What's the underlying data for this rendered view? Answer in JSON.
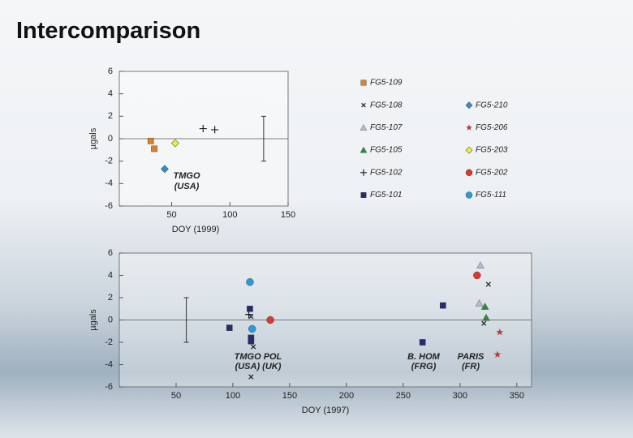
{
  "title": "Intercomparison",
  "chart_data": [
    {
      "type": "scatter",
      "x_label": "DOY (1999)",
      "y_label": "µgals",
      "xlim": [
        5,
        150
      ],
      "ylim": [
        -6,
        6
      ],
      "xticks": [
        50,
        100,
        150
      ],
      "yticks": [
        -6,
        -4,
        -2,
        0,
        2,
        4,
        6
      ],
      "zero_line": true,
      "legend": "right",
      "annotations": [
        "TMGO",
        "(USA)"
      ],
      "error_bar": {
        "x": 129,
        "value": 0,
        "error": 2
      },
      "series": [
        {
          "name": "FG5-109",
          "color": "#d9822b",
          "marker": "square",
          "x": [
            32,
            35
          ],
          "values": [
            -0.2,
            -0.9
          ]
        },
        {
          "name": "FG5-108",
          "color": "#222222",
          "marker": "x",
          "x": [],
          "values": []
        },
        {
          "name": "FG5-107",
          "color": "#b8b8d0",
          "marker": "triangle",
          "x": [],
          "values": []
        },
        {
          "name": "FG5-105",
          "color": "#2a8a3a",
          "marker": "triangle",
          "x": [],
          "values": []
        },
        {
          "name": "FG5-102",
          "color": "#222222",
          "marker": "plus",
          "x": [
            77,
            87
          ],
          "values": [
            0.9,
            0.8
          ]
        },
        {
          "name": "FG5-101",
          "color": "#2a2a6e",
          "marker": "square",
          "x": [],
          "values": []
        },
        {
          "name": "FG5-210",
          "color": "#2b8fd0",
          "marker": "diamond",
          "x": [
            44
          ],
          "values": [
            -2.7
          ]
        },
        {
          "name": "FG5-206",
          "color": "#c0392b",
          "marker": "star",
          "x": [],
          "values": []
        },
        {
          "name": "FG5-203",
          "color": "#f2f22a",
          "marker": "diamond",
          "x": [
            53
          ],
          "values": [
            -0.4
          ]
        },
        {
          "name": "FG5-202",
          "color": "#d93a2a",
          "marker": "circle",
          "x": [],
          "values": []
        },
        {
          "name": "FG5-111",
          "color": "#2a9ad8",
          "marker": "circle",
          "x": [],
          "values": []
        }
      ]
    },
    {
      "type": "scatter",
      "x_label": "DOY (1997)",
      "y_label": "µgals",
      "xlim": [
        0,
        363
      ],
      "ylim": [
        -6,
        6
      ],
      "xticks": [
        50,
        100,
        150,
        200,
        250,
        300,
        350
      ],
      "yticks": [
        -6,
        -4,
        -2,
        0,
        2,
        4,
        6
      ],
      "zero_line": true,
      "annotations": [
        "TMGO POL",
        "(USA)  (UK)",
        "B. HOM",
        "(FRG)",
        "PARIS",
        "(FR)"
      ],
      "error_bar": {
        "x": 59,
        "value": 0,
        "error": 2
      },
      "series": [
        {
          "color": "#222222",
          "marker": "x",
          "x": [
            116,
            118,
            116,
            325,
            321
          ],
          "values": [
            0.3,
            -2.4,
            -5.1,
            3.2,
            -0.3
          ]
        },
        {
          "color": "#b8b8d0",
          "marker": "triangle",
          "x": [
            318,
            317
          ],
          "values": [
            4.9,
            1.5
          ]
        },
        {
          "color": "#2a8a3a",
          "marker": "triangle",
          "x": [
            322,
            323
          ],
          "values": [
            1.2,
            0.2
          ]
        },
        {
          "color": "#222222",
          "marker": "plus",
          "x": [
            114
          ],
          "values": [
            0.5
          ]
        },
        {
          "color": "#2a2a6e",
          "marker": "square",
          "x": [
            97,
            115,
            116,
            116,
            267,
            285
          ],
          "values": [
            -0.7,
            1.0,
            -1.6,
            -1.9,
            -2.0,
            1.3
          ]
        },
        {
          "color": "#c0392b",
          "marker": "star",
          "x": [
            335,
            333
          ],
          "values": [
            -1.1,
            -3.1
          ]
        },
        {
          "color": "#d93a2a",
          "marker": "circle",
          "x": [
            133,
            315
          ],
          "values": [
            0,
            4.0
          ]
        },
        {
          "color": "#2a9ad8",
          "marker": "circle",
          "x": [
            115,
            117
          ],
          "values": [
            3.4,
            -0.8
          ]
        }
      ]
    }
  ]
}
